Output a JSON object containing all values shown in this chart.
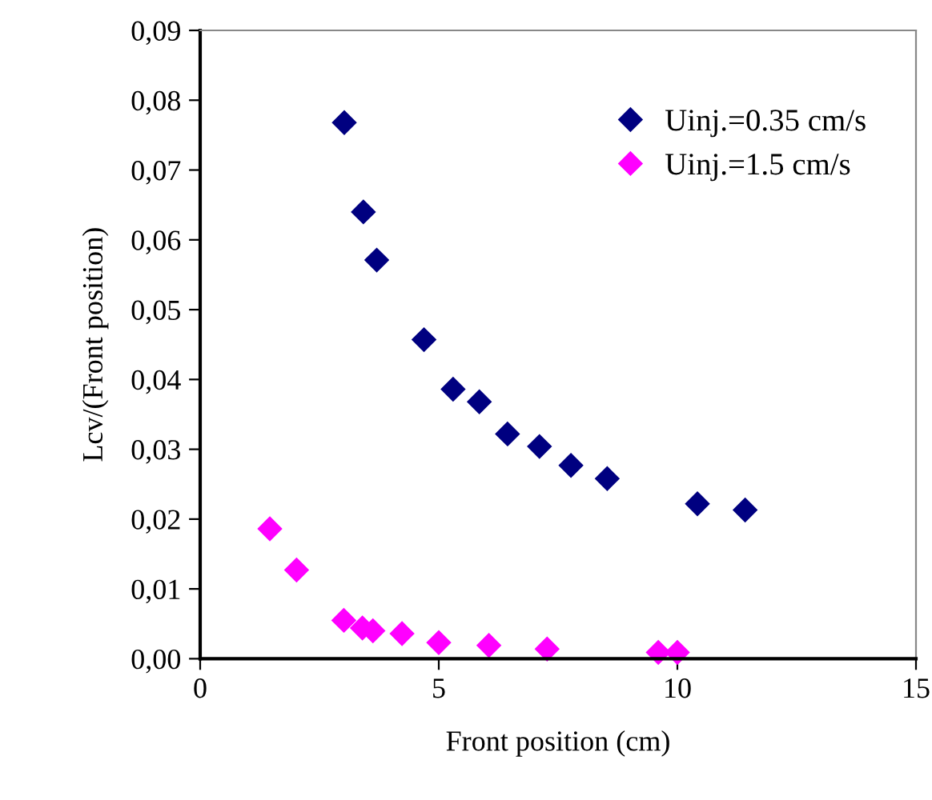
{
  "chart_data": {
    "type": "scatter",
    "xlabel": "Front position (cm)",
    "ylabel": "Lcv/(Front position)",
    "xlim": [
      0,
      15
    ],
    "ylim": [
      0,
      0.09
    ],
    "xticks": [
      0,
      5,
      10,
      15
    ],
    "yticks": [
      {
        "value": 0,
        "label": "0,00"
      },
      {
        "value": 0.01,
        "label": "0,01"
      },
      {
        "value": 0.02,
        "label": "0,02"
      },
      {
        "value": 0.03,
        "label": "0,03"
      },
      {
        "value": 0.04,
        "label": "0,04"
      },
      {
        "value": 0.05,
        "label": "0,05"
      },
      {
        "value": 0.06,
        "label": "0,06"
      },
      {
        "value": 0.07,
        "label": "0,07"
      },
      {
        "value": 0.08,
        "label": "0,08"
      },
      {
        "value": 0.09,
        "label": "0,09"
      }
    ],
    "marker": "diamond",
    "grid": false,
    "legend": "top right",
    "series": [
      {
        "name": "Uinj.=0.35 cm/s",
        "color": "#000080",
        "x": [
          3.02,
          3.42,
          3.7,
          4.69,
          5.3,
          5.85,
          6.44,
          7.11,
          7.77,
          8.53,
          10.42,
          11.42
        ],
        "values": [
          0.0768,
          0.064,
          0.0571,
          0.0457,
          0.0386,
          0.0368,
          0.0322,
          0.0304,
          0.0277,
          0.0258,
          0.0222,
          0.0213
        ]
      },
      {
        "name": "Uinj.=1.5 cm/s",
        "color": "#ff00ff",
        "x": [
          1.46,
          2.02,
          3.01,
          3.4,
          3.62,
          4.23,
          5.0,
          6.05,
          7.27,
          9.6,
          10.0
        ],
        "values": [
          0.0186,
          0.0127,
          0.0055,
          0.0044,
          0.004,
          0.0036,
          0.0023,
          0.0019,
          0.0014,
          0.0009,
          0.0009
        ]
      }
    ]
  }
}
